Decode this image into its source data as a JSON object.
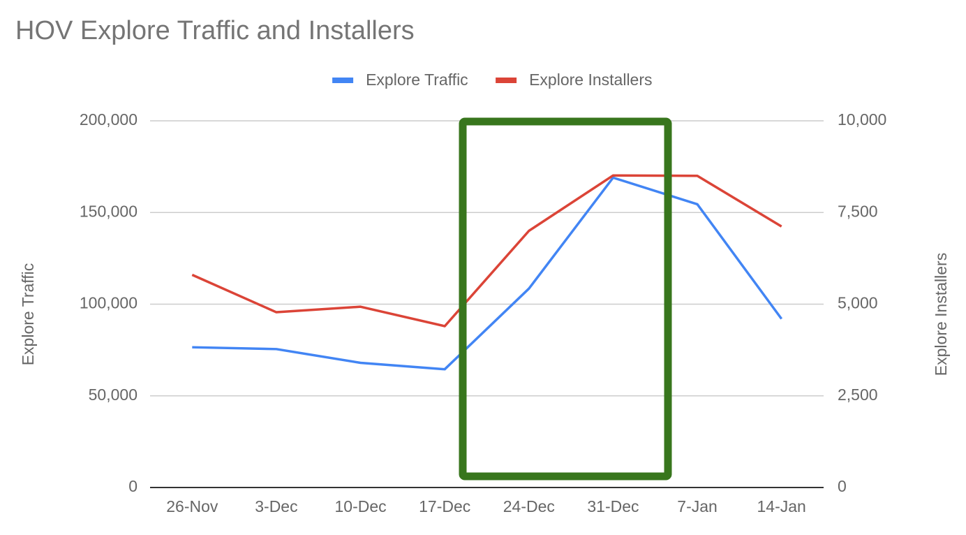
{
  "chart_data": {
    "type": "line",
    "title": "HOV Explore Traffic and Installers",
    "y_label": "Explore Traffic",
    "y2_label": "Explore Installers",
    "categories": [
      "26-Nov",
      "3-Dec",
      "10-Dec",
      "17-Dec",
      "24-Dec",
      "31-Dec",
      "7-Jan",
      "14-Jan"
    ],
    "series": [
      {
        "name": "Explore Traffic",
        "color": "#4285f4",
        "values": [
          76500,
          75500,
          68000,
          64500,
          108500,
          169000,
          154500,
          92000
        ]
      },
      {
        "name": "Explore Installers",
        "color": "#db4437",
        "axis": "y2",
        "values": [
          5800,
          4780,
          4930,
          4400,
          7000,
          8510,
          8500,
          7120
        ]
      }
    ],
    "ylim": [
      0,
      200000
    ],
    "yticks": [
      0,
      {
        "value": 50000,
        "label": "50,000"
      },
      {
        "value": 100000,
        "label": "100,000"
      },
      {
        "value": 150000,
        "label": "150,000"
      },
      {
        "value": 200000,
        "label": "200,000"
      }
    ],
    "y2lim": [
      0,
      10000
    ],
    "y2ticks": [
      0,
      {
        "value": 2500,
        "label": "2,500"
      },
      {
        "value": 5000,
        "label": "5,000"
      },
      {
        "value": 7500,
        "label": "7,500"
      },
      {
        "value": 10000,
        "label": "10,000"
      }
    ],
    "grid": true,
    "legend": "top"
  }
}
